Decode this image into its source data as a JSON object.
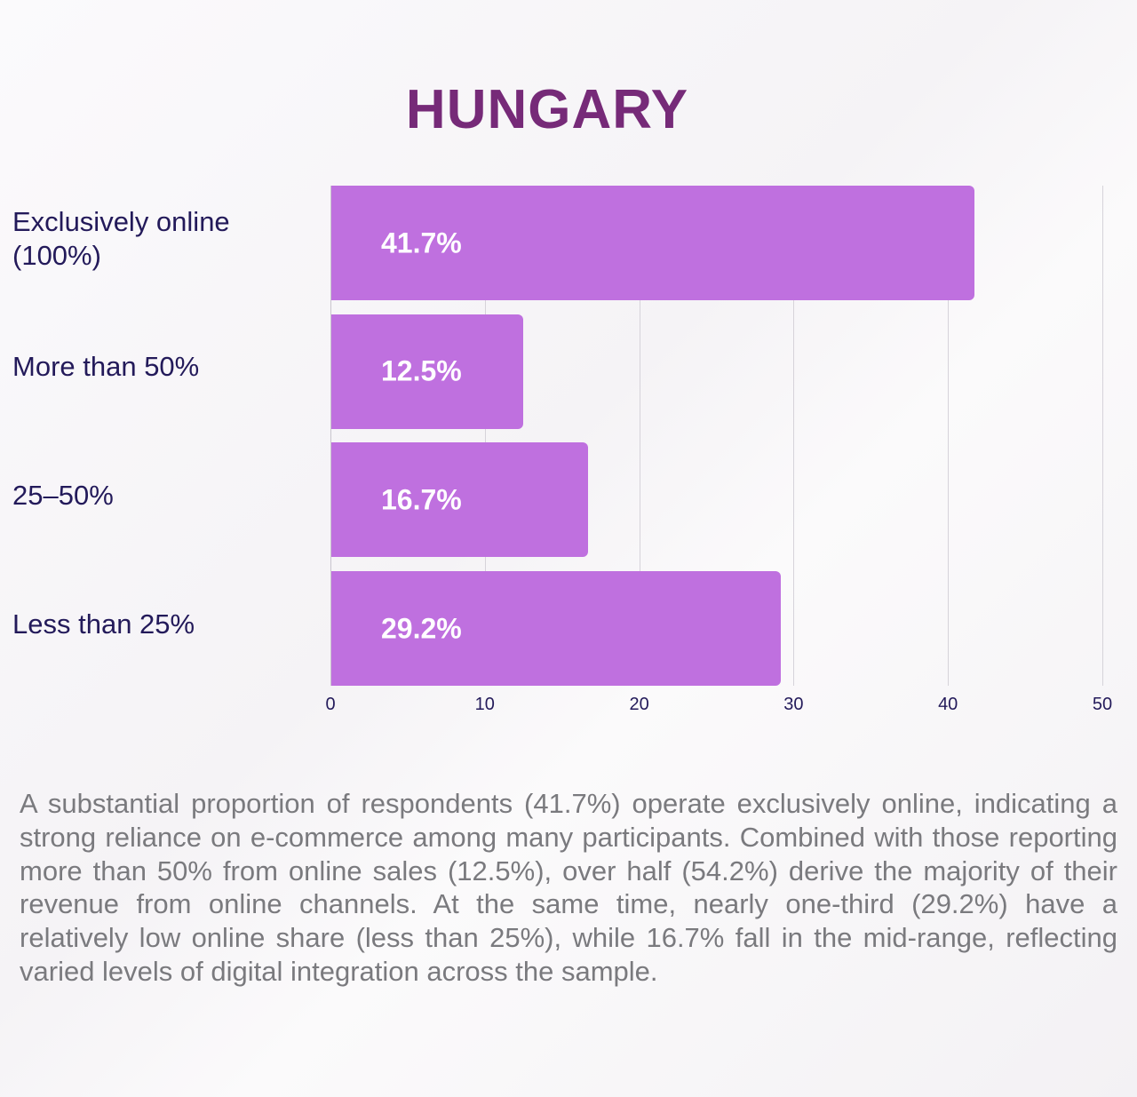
{
  "chart_data": {
    "type": "bar",
    "orientation": "horizontal",
    "title": "HUNGARY",
    "categories": [
      "Exclusively online (100%)",
      "More than 50%",
      "25–50%",
      "Less than 25%"
    ],
    "values": [
      41.7,
      12.5,
      16.7,
      29.2
    ],
    "data_labels": [
      "41.7%",
      "12.5%",
      "16.7%",
      "29.2%"
    ],
    "xlim": [
      0,
      50
    ],
    "xticks": [
      "0",
      "10",
      "20",
      "30",
      "40",
      "50"
    ],
    "grid": true,
    "bar_color": "#bf70df",
    "title_color": "#762a78"
  },
  "paragraph": "A substantial proportion of respondents (41.7%) operate exclusively online, indicating a strong reliance on e-commerce among many participants. Combined with those reporting more than 50% from online sales (12.5%), over half (54.2%) derive the majority of their revenue from online channels. At the same time, nearly one-third (29.2%) have a relatively low online share (less than 25%), while 16.7% fall in the mid-range, reflecting varied levels of digital integration across the sample."
}
